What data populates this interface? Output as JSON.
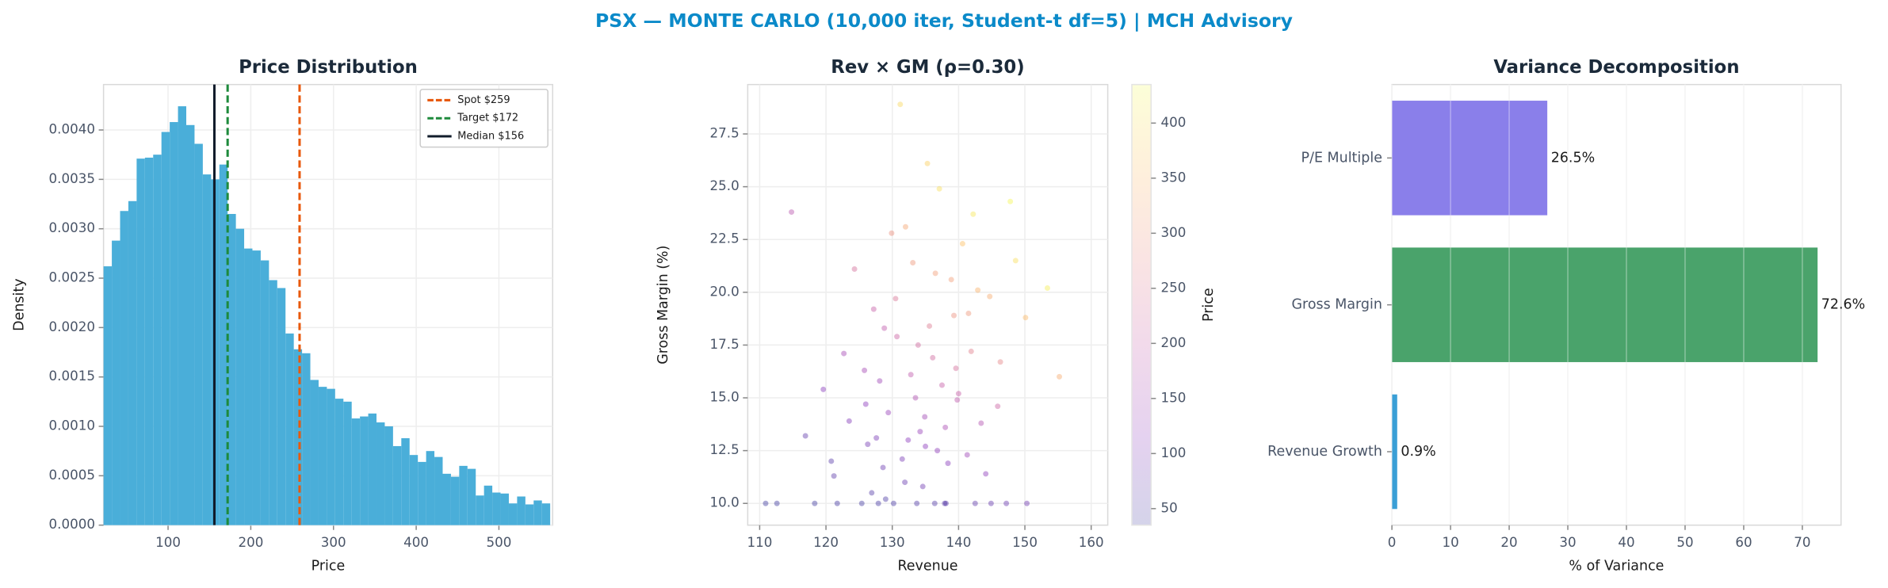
{
  "title": "PSX — MONTE CARLO (10,000 iter, Student-t df=5) | MCH Advisory",
  "chart_data": [
    {
      "type": "histogram",
      "title": "Price Distribution",
      "x_label": "Price",
      "y_label": "Density",
      "bins": [
        22,
        32,
        42,
        52,
        62,
        72,
        82,
        92,
        102,
        112,
        122,
        132,
        142,
        152,
        162,
        172,
        182,
        192,
        202,
        212,
        222,
        232,
        242,
        252,
        262,
        272,
        282,
        292,
        302,
        312,
        322,
        332,
        342,
        352,
        362,
        372,
        382,
        392,
        402,
        412,
        422,
        432,
        442,
        452,
        462,
        472,
        482,
        492,
        502,
        512,
        522,
        532,
        542,
        552,
        562
      ],
      "values": [
        0.00262,
        0.00288,
        0.00318,
        0.00328,
        0.00371,
        0.00372,
        0.00375,
        0.00398,
        0.00408,
        0.00424,
        0.00405,
        0.00386,
        0.00355,
        0.0035,
        0.00365,
        0.00315,
        0.003,
        0.0028,
        0.00278,
        0.00268,
        0.00248,
        0.0024,
        0.00194,
        0.00178,
        0.00174,
        0.00147,
        0.0014,
        0.00138,
        0.00128,
        0.00125,
        0.00108,
        0.0011,
        0.00113,
        0.00104,
        0.001,
        0.0008,
        0.00088,
        0.00071,
        0.00064,
        0.00075,
        0.00069,
        0.00052,
        0.00049,
        0.0006,
        0.00057,
        0.0003,
        0.0004,
        0.00033,
        0.00032,
        0.00022,
        0.00029,
        0.00021,
        0.00025,
        0.00022
      ],
      "color": "#4aaed9",
      "xlim": [
        22,
        565
      ],
      "ylim": [
        0,
        0.00446
      ],
      "xticks": [
        100,
        200,
        300,
        400,
        500
      ],
      "yticks": [
        {
          "value": 0,
          "label": "0.0000"
        },
        {
          "value": 0.0005,
          "label": "0.0005"
        },
        {
          "value": 0.001,
          "label": "0.0010"
        },
        {
          "value": 0.0015,
          "label": "0.0015"
        },
        {
          "value": 0.002,
          "label": "0.0020"
        },
        {
          "value": 0.0025,
          "label": "0.0025"
        },
        {
          "value": 0.003,
          "label": "0.0030"
        },
        {
          "value": 0.0035,
          "label": "0.0035"
        },
        {
          "value": 0.004,
          "label": "0.0040"
        }
      ],
      "grid": true,
      "legend": "upper right",
      "vlines": [
        {
          "label": "Spot $259",
          "value": 259,
          "color": "#e8590c",
          "style": "dashed"
        },
        {
          "label": "Target $172",
          "value": 172,
          "color": "#1e8a3c",
          "style": "dashed"
        },
        {
          "label": "Median $156",
          "value": 156,
          "color": "#111c2b",
          "style": "solid"
        }
      ]
    },
    {
      "type": "scatter",
      "title": "Rev × GM (ρ=0.30)",
      "x_label": "Revenue",
      "y_label": "Gross Margin (%)",
      "xlim": [
        108.2,
        162.5
      ],
      "ylim": [
        8.97,
        29.84
      ],
      "xticks": [
        110,
        120,
        130,
        140,
        150,
        160
      ],
      "yticks": [
        {
          "value": 10,
          "label": "10.0"
        },
        12.5,
        {
          "value": 15,
          "label": "15.0"
        },
        17.5,
        {
          "value": 20,
          "label": "20.0"
        },
        22.5,
        {
          "value": 25,
          "label": "25.0"
        },
        27.5
      ],
      "grid": true,
      "colormap": "plasma",
      "alpha": 0.35,
      "clim": [
        35,
        435
      ],
      "cticks": [
        50,
        100,
        150,
        200,
        250,
        300,
        350,
        400
      ],
      "colorbar_label": "Price",
      "series": [
        {
          "x": [
            130.2,
            125.4,
            138.1,
            142.5,
            118.3,
            133.7,
            127.9,
            147.2,
            112.6,
            136.4,
            131.5,
            134.2,
            128.6,
            139.8,
            126.3,
            137.5,
            141.9,
            132.8,
            129.4,
            135.6,
            144.7,
            138.9,
            123.5,
            121.2,
            146.3,
            133.1,
            140.6,
            136.8,
            130.7,
            127.2,
            143.4,
            119.6,
            150.1,
            134.9,
            131.9,
            138.4,
            125.8,
            142.2,
            137.1,
            129.9,
            148.6,
            116.9,
            135.3,
            140.0,
            132.4,
            128.1,
            139.3,
            145.9,
            122.7,
            153.4,
            134.6,
            126.9,
            141.3,
            136.1,
            130.5,
            144.1,
            124.3,
            138.0,
            133.5,
            120.8,
            147.8,
            131.2,
            142.9,
            127.6,
            135.0,
            139.6,
            114.8,
            155.2,
            129.0,
            137.9,
            150.3,
            110.9,
            121.7,
            144.9,
            133.9,
            126.0,
            141.5,
            132.0,
            136.5,
            128.8
          ],
          "values": [
            10.0,
            10.0,
            10.0,
            10.0,
            10.0,
            10.0,
            10.0,
            10.0,
            10.0,
            10.0,
            12.1,
            13.4,
            11.7,
            14.9,
            12.8,
            15.6,
            17.2,
            16.1,
            14.3,
            18.4,
            19.8,
            20.6,
            13.9,
            11.3,
            16.7,
            21.4,
            22.3,
            12.5,
            17.9,
            19.2,
            13.8,
            15.4,
            18.8,
            14.1,
            11.0,
            11.9,
            16.3,
            23.7,
            24.9,
            22.8,
            21.5,
            13.2,
            26.1,
            15.2,
            13.0,
            15.8,
            18.9,
            14.6,
            17.1,
            20.2,
            10.8,
            10.5,
            12.3,
            16.9,
            19.7,
            11.4,
            21.1,
            13.6,
            15.0,
            12.0,
            24.3,
            28.9,
            20.1,
            13.1,
            12.7,
            16.4,
            23.8,
            16.0,
            10.2,
            10.0,
            10.0,
            10.0,
            10.0,
            10.0,
            17.5,
            14.7,
            19.0,
            23.1,
            20.9,
            18.3
          ],
          "color_values": [
            45,
            40,
            60,
            70,
            38,
            52,
            44,
            80,
            36,
            55,
            95,
            130,
            80,
            185,
            90,
            200,
            260,
            190,
            130,
            250,
            330,
            310,
            105,
            65,
            270,
            300,
            360,
            120,
            210,
            200,
            170,
            110,
            350,
            145,
            75,
            110,
            150,
            410,
            400,
            290,
            400,
            70,
            380,
            200,
            115,
            140,
            290,
            210,
            150,
            420,
            85,
            55,
            140,
            220,
            240,
            120,
            230,
            155,
            165,
            60,
            430,
            390,
            340,
            95,
            115,
            230,
            180,
            330,
            50,
            58,
            85,
            34,
            42,
            75,
            220,
            115,
            300,
            320,
            310,
            190
          ]
        }
      ]
    },
    {
      "type": "hbar",
      "title": "Variance Decomposition",
      "x_label": "% of Variance",
      "categories": [
        "P/E Multiple",
        "Gross Margin",
        "Revenue Growth"
      ],
      "values": [
        26.5,
        72.6,
        0.9
      ],
      "value_labels": [
        "26.5%",
        "72.6%",
        "0.9%"
      ],
      "colors": [
        "#8a7fea",
        "#4aa36b",
        "#3a9fd6"
      ],
      "xlim": [
        0,
        76.6
      ],
      "xticks": [
        0,
        10,
        20,
        30,
        40,
        50,
        60,
        70
      ],
      "grid": true
    }
  ]
}
